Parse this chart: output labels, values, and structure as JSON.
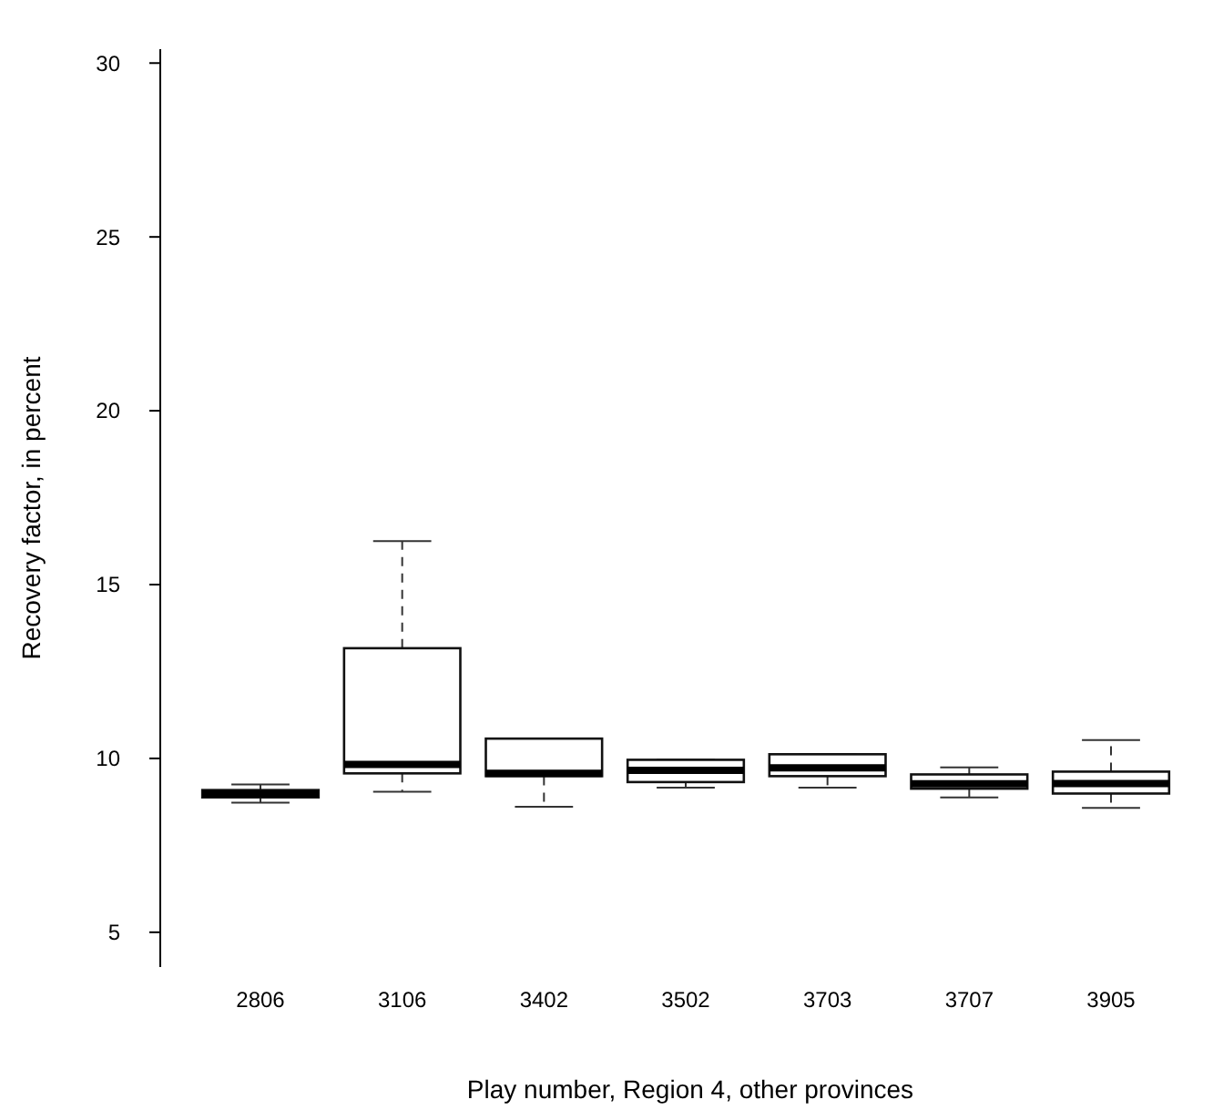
{
  "chart_data": {
    "type": "box",
    "xlabel": "Play number, Region 4, other provinces",
    "ylabel": "Recovery factor, in percent",
    "categories": [
      "2806",
      "3106",
      "3402",
      "3502",
      "3703",
      "3707",
      "3905"
    ],
    "ylim": [
      4,
      30.4
    ],
    "yticks": [
      5,
      10,
      15,
      20,
      25,
      30
    ],
    "grid": false,
    "boxes": [
      {
        "low": 8.73,
        "q1": 8.88,
        "median": 8.98,
        "q3": 9.09,
        "high": 9.25
      },
      {
        "low": 9.04,
        "q1": 9.57,
        "median": 9.83,
        "q3": 13.17,
        "high": 16.25
      },
      {
        "low": 8.61,
        "q1": 9.49,
        "median": 9.57,
        "q3": 10.57,
        "high": 10.57
      },
      {
        "low": 9.16,
        "q1": 9.32,
        "median": 9.66,
        "q3": 9.96,
        "high": 9.96
      },
      {
        "low": 9.16,
        "q1": 9.49,
        "median": 9.73,
        "q3": 10.12,
        "high": 10.12
      },
      {
        "low": 8.88,
        "q1": 9.13,
        "median": 9.27,
        "q3": 9.54,
        "high": 9.74
      },
      {
        "low": 8.58,
        "q1": 8.99,
        "median": 9.28,
        "q3": 9.62,
        "high": 10.53
      }
    ]
  }
}
